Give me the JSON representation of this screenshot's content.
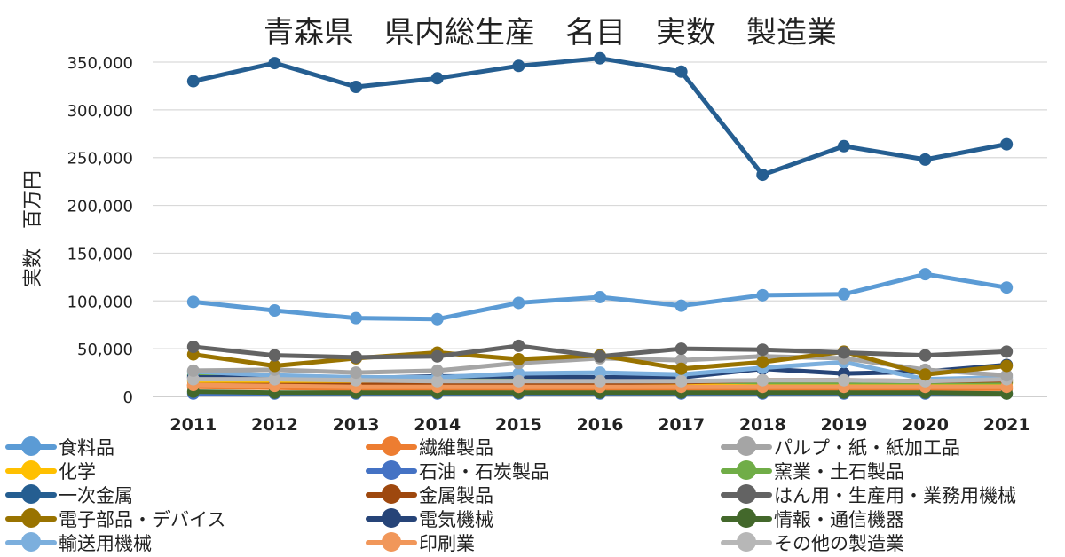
{
  "chart_data": {
    "type": "line",
    "title": "青森県　県内総生産　名目　実数　製造業",
    "ylabel": "実数　百万円",
    "xlabel": "",
    "ylim": [
      0,
      350000
    ],
    "yticks": [
      0,
      50000,
      100000,
      150000,
      200000,
      250000,
      300000,
      350000
    ],
    "ytick_labels": [
      "0",
      "50,000",
      "100,000",
      "150,000",
      "200,000",
      "250,000",
      "300,000",
      "350,000"
    ],
    "categories": [
      "2011",
      "2012",
      "2013",
      "2014",
      "2015",
      "2016",
      "2017",
      "2018",
      "2019",
      "2020",
      "2021"
    ],
    "grid": "horizontal",
    "legend_position": "bottom",
    "series": [
      {
        "name": "食料品",
        "color": "#5b9bd5",
        "values": [
          99000,
          90000,
          82000,
          81000,
          98000,
          104000,
          95000,
          106000,
          107000,
          128000,
          114000
        ]
      },
      {
        "name": "繊維製品",
        "color": "#ed7d31",
        "values": [
          10000,
          9000,
          8000,
          8000,
          8500,
          8000,
          8000,
          8000,
          8000,
          8000,
          8000
        ]
      },
      {
        "name": "パルプ・紙・紙加工品",
        "color": "#a5a5a5",
        "values": [
          27000,
          28000,
          25000,
          27000,
          35000,
          40000,
          38000,
          42000,
          40000,
          28000,
          22000
        ]
      },
      {
        "name": "化学",
        "color": "#ffc000",
        "values": [
          16000,
          15000,
          14000,
          14000,
          14000,
          14000,
          14000,
          14000,
          14000,
          14000,
          14000
        ]
      },
      {
        "name": "石油・石炭製品",
        "color": "#4472c4",
        "values": [
          3000,
          3000,
          3000,
          3000,
          3000,
          3000,
          3000,
          3000,
          3000,
          3000,
          3000
        ]
      },
      {
        "name": "窯業・土石製品",
        "color": "#70ad47",
        "values": [
          22000,
          20000,
          19000,
          18000,
          18000,
          18000,
          16000,
          15000,
          15000,
          15000,
          15000
        ]
      },
      {
        "name": "一次金属",
        "color": "#255e91",
        "values": [
          330000,
          349000,
          324000,
          333000,
          346000,
          354000,
          340000,
          232000,
          262000,
          248000,
          264000
        ]
      },
      {
        "name": "金属製品",
        "color": "#9e480e",
        "values": [
          12000,
          12000,
          12000,
          13000,
          14000,
          14000,
          15000,
          17000,
          17000,
          16000,
          17000
        ]
      },
      {
        "name": "はん用・生産用・業務用機械",
        "color": "#636363",
        "values": [
          52000,
          43000,
          41000,
          42000,
          53000,
          42000,
          50000,
          49000,
          46000,
          43000,
          47000
        ]
      },
      {
        "name": "電子部品・デバイス",
        "color": "#997300",
        "values": [
          44000,
          32000,
          40000,
          46000,
          39000,
          43000,
          29000,
          36000,
          47000,
          23000,
          32000
        ]
      },
      {
        "name": "電気機械",
        "color": "#264478",
        "values": [
          20000,
          20000,
          19000,
          21000,
          21000,
          20000,
          20000,
          29000,
          24000,
          26000,
          33000
        ]
      },
      {
        "name": "情報・通信機器",
        "color": "#43682b",
        "values": [
          5000,
          4000,
          4000,
          4000,
          4000,
          4000,
          4000,
          4000,
          4000,
          4000,
          3000
        ]
      },
      {
        "name": "輸送用機械",
        "color": "#7cafdd",
        "values": [
          26000,
          22000,
          20000,
          20000,
          24000,
          25000,
          23000,
          30000,
          36000,
          18000,
          20000
        ]
      },
      {
        "name": "印刷業",
        "color": "#f1975a",
        "values": [
          12000,
          11000,
          10000,
          10000,
          10000,
          10000,
          10000,
          10000,
          10000,
          10000,
          10000
        ]
      },
      {
        "name": "その他の製造業",
        "color": "#b7b7b7",
        "values": [
          18000,
          18000,
          17000,
          16000,
          16000,
          16000,
          16000,
          17000,
          17000,
          16000,
          18000
        ]
      }
    ]
  }
}
